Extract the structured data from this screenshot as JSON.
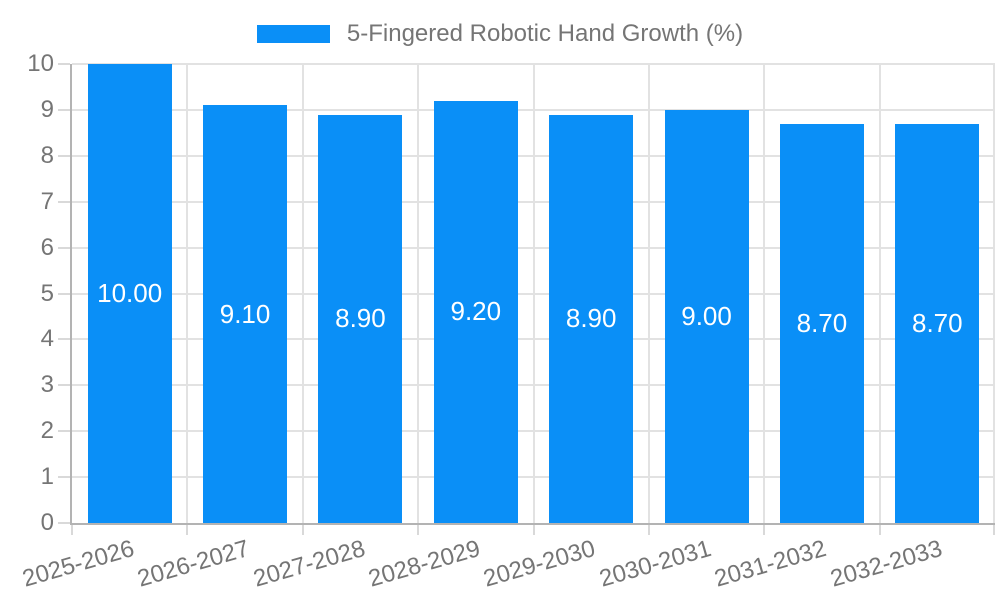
{
  "chart_data": {
    "type": "bar",
    "legend": {
      "position": "top",
      "label": "5-Fingered Robotic Hand Growth (%)"
    },
    "categories": [
      "2025-2026",
      "2026-2027",
      "2027-2028",
      "2028-2029",
      "2029-2030",
      "2030-2031",
      "2031-2032",
      "2032-2033"
    ],
    "values": [
      10.0,
      9.1,
      8.9,
      9.2,
      8.9,
      9.0,
      8.7,
      8.7
    ],
    "value_labels": [
      "10.00",
      "9.10",
      "8.90",
      "9.20",
      "8.90",
      "9.00",
      "8.70",
      "8.70"
    ],
    "title": "",
    "xlabel": "",
    "ylabel": "",
    "ylim": [
      0,
      10
    ],
    "ytick_step": 1,
    "y_tick_labels": [
      "0",
      "1",
      "2",
      "3",
      "4",
      "5",
      "6",
      "7",
      "8",
      "9",
      "10"
    ],
    "grid": true,
    "colors": {
      "bar": "#0a8ff7",
      "grid": "#e2e2e2",
      "axis": "#b3b3b3",
      "tick": "#d9d9d9",
      "axis_text": "#757575",
      "legend_text": "#757575",
      "value_text": "#ffffff",
      "background": "#ffffff"
    }
  }
}
